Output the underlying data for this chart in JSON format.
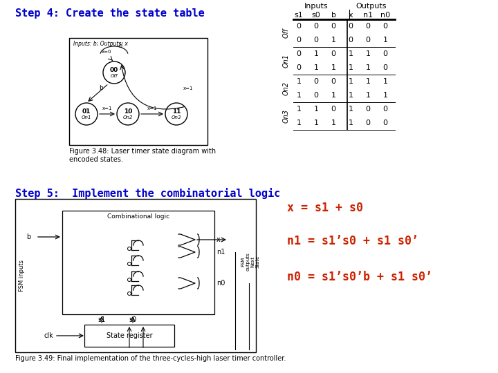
{
  "step4_title": "Step 4: Create the state table",
  "step5_title": "Step 5:  Implement the combinatorial logic",
  "title_color": "#0000CC",
  "title_fontsize": 11,
  "table_headers_inputs": [
    "s1",
    "s0",
    "b"
  ],
  "table_headers_outputs": [
    "x",
    "n1",
    "n0"
  ],
  "table_col_header_inputs": "Inputs",
  "table_col_header_outputs": "Outputs",
  "table_row_labels": [
    "Off",
    "On1",
    "On2",
    "On3"
  ],
  "table_data": [
    [
      0,
      0,
      0,
      0,
      0,
      0
    ],
    [
      0,
      0,
      1,
      0,
      0,
      1
    ],
    [
      0,
      1,
      0,
      1,
      1,
      0
    ],
    [
      0,
      1,
      1,
      1,
      1,
      0
    ],
    [
      1,
      0,
      0,
      1,
      1,
      1
    ],
    [
      1,
      0,
      1,
      1,
      1,
      1
    ],
    [
      1,
      1,
      0,
      1,
      0,
      0
    ],
    [
      1,
      1,
      1,
      1,
      0,
      0
    ]
  ],
  "eq1": "x = s1 + s0",
  "eq2": "n1 = s1’s0 + s1 s0’",
  "eq3": "n0 = s1’s0’b + s1 s0’",
  "eq_color": "#CC2200",
  "eq_fontsize": 12,
  "fig3_49_caption": "Figure 3.49: Final implementation of the three-cycles-high laser timer controller.",
  "fig3_48_caption": "Figure 3.48: Laser timer state diagram with\nencoded states.",
  "caption_fontsize": 7,
  "bg_color": "#FFFFFF",
  "table_text_color": "#000000",
  "table_fontsize": 8,
  "diagram_border_color": "#000000"
}
